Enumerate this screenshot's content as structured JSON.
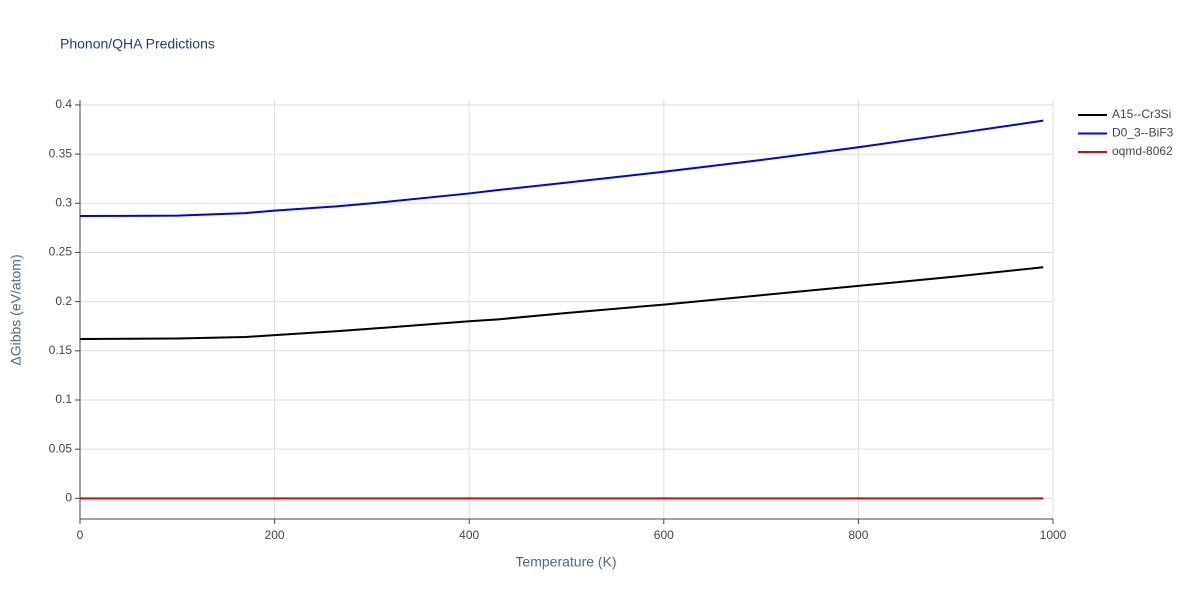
{
  "chart_data": {
    "type": "line",
    "title": "Phonon/QHA Predictions",
    "x_label": "Temperature (K)",
    "y_label": "ΔGibbs (eV/atom)",
    "x": [
      0,
      100,
      170,
      200,
      265,
      300,
      400,
      430,
      500,
      600,
      700,
      800,
      900,
      990
    ],
    "series": [
      {
        "name": "A15--Cr3Si",
        "color": "#000000",
        "values": [
          0.162,
          0.1625,
          0.164,
          0.166,
          0.17,
          0.1725,
          0.18,
          0.182,
          0.1885,
          0.197,
          0.2065,
          0.216,
          0.2255,
          0.235
        ]
      },
      {
        "name": "D0_3--BiF3",
        "color": "#0000ee",
        "values": [
          0.287,
          0.2875,
          0.29,
          0.2925,
          0.297,
          0.3,
          0.31,
          0.3135,
          0.321,
          0.332,
          0.344,
          0.357,
          0.371,
          0.384
        ]
      },
      {
        "name": "oqmd-8062",
        "color": "#ee0000",
        "values": [
          0,
          0,
          0,
          0,
          0,
          0,
          0,
          0,
          0,
          0,
          0,
          0,
          0,
          0
        ]
      }
    ],
    "xlim": [
      0,
      1000
    ],
    "xticks": [
      0,
      200,
      400,
      600,
      800,
      1000
    ],
    "ylim": [
      -0.021,
      0.405
    ],
    "yticks": [
      0,
      0.05,
      0.1,
      0.15,
      0.2,
      0.25,
      0.3,
      0.35,
      0.4
    ],
    "grid": true,
    "legend": "outside-right"
  }
}
